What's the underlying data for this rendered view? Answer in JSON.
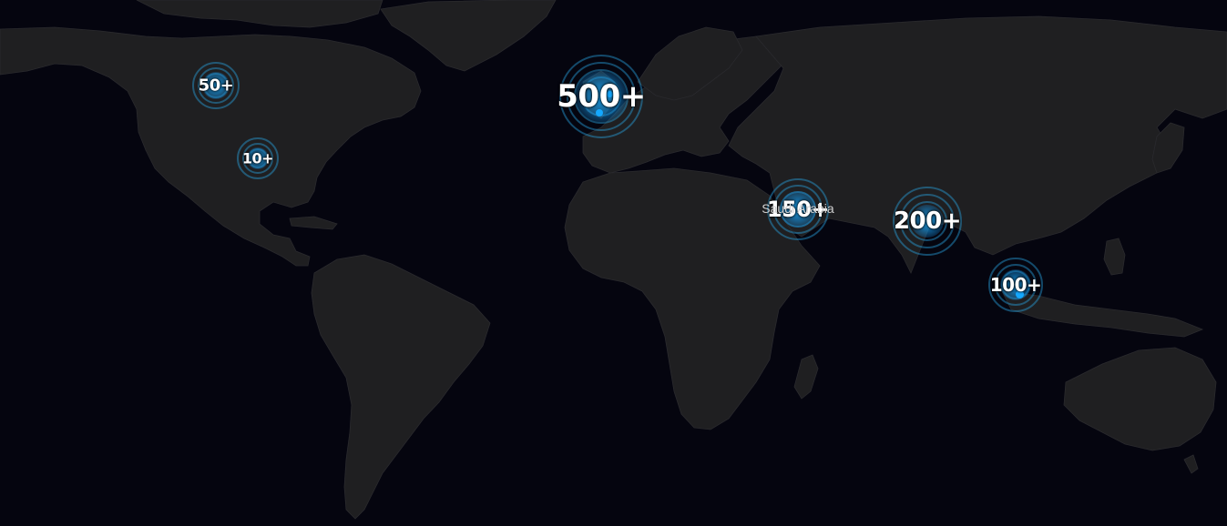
{
  "map": {
    "background_color": "#05050f",
    "land_color": "#1f1f21",
    "marker_color": "#14a8ff",
    "label_color": "#ffffff"
  },
  "markers": [
    {
      "id": "usa-north",
      "label": "50+"
    },
    {
      "id": "usa-central",
      "label": "10+"
    },
    {
      "id": "uk",
      "label": "500+"
    },
    {
      "id": "saudi-arabia",
      "label": "150+"
    },
    {
      "id": "india",
      "label": "200+"
    },
    {
      "id": "southeast-asia",
      "label": "100+"
    }
  ],
  "country_labels": [
    {
      "id": "saudi-arabia",
      "text": "Saudi Arabia"
    }
  ]
}
